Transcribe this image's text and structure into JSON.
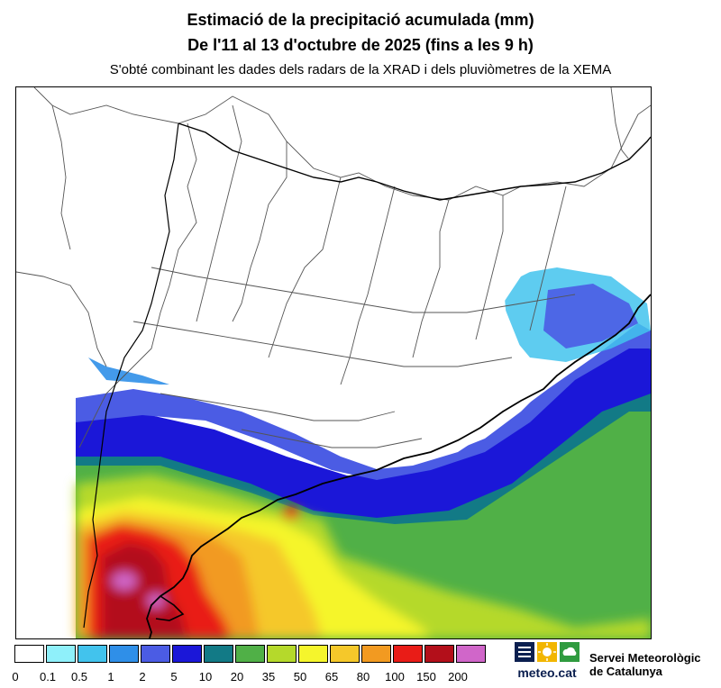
{
  "header": {
    "title": "Estimació de la precipitació acumulada (mm)",
    "subtitle": "De l'11 al 13 d'octubre de 2025 (fins a les 9 h)",
    "source": "S'obté combinant les dades dels radars de la XRAD i dels pluviòmetres de la XEMA"
  },
  "legend": {
    "unit": "mm",
    "labels": [
      "0",
      "0.1",
      "0.5",
      "1",
      "2",
      "5",
      "10",
      "20",
      "35",
      "50",
      "65",
      "80",
      "100",
      "150",
      "200"
    ],
    "colors": [
      "#ffffff",
      "#8ff0fa",
      "#42c3ed",
      "#2f8fe8",
      "#4b5ce4",
      "#1b17d8",
      "#127a86",
      "#50b047",
      "#b5d92b",
      "#f5f52c",
      "#f5c82a",
      "#f29a21",
      "#e91c17",
      "#b30f1a",
      "#d066c9"
    ]
  },
  "branding": {
    "logo_text": "meteo.cat",
    "org_line1": "Servei Meteorològic",
    "org_line2": "de Catalunya",
    "logo_colors": [
      "#0b1f4f",
      "#f2b600",
      "#2f9b3f"
    ],
    "logo_icons": [
      "bars-icon",
      "sun-icon",
      "cloud-icon"
    ]
  },
  "map": {
    "region": "Catalunya",
    "coast_color": "#000000",
    "boundary_color": "#555555"
  }
}
